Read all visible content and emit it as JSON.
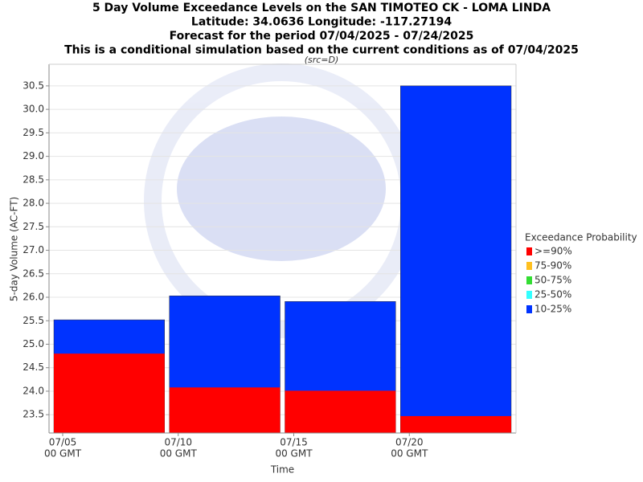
{
  "chart_data": {
    "type": "bar",
    "title": [
      "5 Day Volume Exceedance Levels on the SAN TIMOTEO CK - LOMA LINDA",
      "Latitude: 34.0636 Longitude: -117.27194",
      "Forecast for the period 07/04/2025 - 07/24/2025",
      "This is a conditional simulation based on the current conditions as of 07/04/2025"
    ],
    "subtitle": "(src=D)",
    "x_label": "Time",
    "y_label": "5-day Volume (AC-FT)",
    "legend_title": "Exceedance Probability",
    "categories": [
      null,
      null,
      null,
      null
    ],
    "series": [
      {
        "name": ">=90%",
        "color": "#ff0000",
        "values": [
          24.8,
          24.08,
          24.01,
          23.47
        ]
      },
      {
        "name": "75-90%",
        "color": "#ffc020",
        "values": [
          null,
          null,
          null,
          null
        ]
      },
      {
        "name": "50-75%",
        "color": "#33dd33",
        "values": [
          null,
          null,
          null,
          null
        ]
      },
      {
        "name": "25-50%",
        "color": "#33ffff",
        "values": [
          null,
          null,
          null,
          null
        ]
      },
      {
        "name": "10-25%",
        "color": "#0033ff",
        "values": [
          25.52,
          26.03,
          25.91,
          30.5
        ]
      }
    ],
    "xticks": [
      [
        "07/05",
        "00 GMT"
      ],
      [
        "07/10",
        "00 GMT"
      ],
      [
        "07/15",
        "00 GMT"
      ],
      [
        "07/20",
        "00 GMT"
      ]
    ],
    "ylim": [
      23.11,
      30.96
    ],
    "yticks": [
      23.5,
      {
        "value": 24,
        "label": "24.0"
      },
      24.5,
      {
        "value": 25,
        "label": "25.0"
      },
      25.5,
      {
        "value": 26,
        "label": "26.0"
      },
      26.5,
      {
        "value": 27,
        "label": "27.0"
      },
      27.5,
      {
        "value": 28,
        "label": "28.0"
      },
      28.5,
      {
        "value": 29,
        "label": "29.0"
      },
      29.5,
      {
        "value": 30,
        "label": "30.0"
      },
      30.5
    ],
    "grid": true
  }
}
